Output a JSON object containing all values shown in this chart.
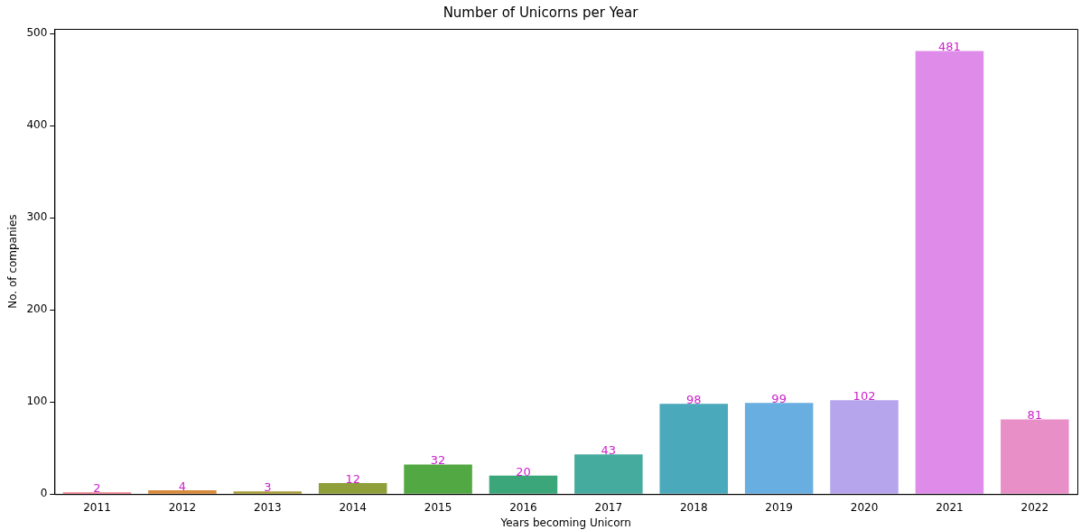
{
  "chart_data": {
    "type": "bar",
    "title": "Number of Unicorns per Year",
    "xlabel": "Years becoming Unicorn",
    "ylabel": "No. of companies",
    "categories": [
      "2011",
      "2012",
      "2013",
      "2014",
      "2015",
      "2016",
      "2017",
      "2018",
      "2019",
      "2020",
      "2021",
      "2022"
    ],
    "values": [
      2,
      4,
      3,
      12,
      32,
      20,
      43,
      98,
      99,
      102,
      481,
      81
    ],
    "colors": [
      "#f27a8a",
      "#d98a3a",
      "#a79c35",
      "#8f9f3a",
      "#52a843",
      "#3ba67a",
      "#45ab9f",
      "#4aa9bb",
      "#69aee0",
      "#b6a5ec",
      "#df8be9",
      "#e98fc8"
    ],
    "ylim": [
      0,
      505
    ],
    "yticks": [
      0,
      100,
      200,
      300,
      400,
      500
    ],
    "grid": false,
    "legend": false,
    "data_labels": true
  }
}
